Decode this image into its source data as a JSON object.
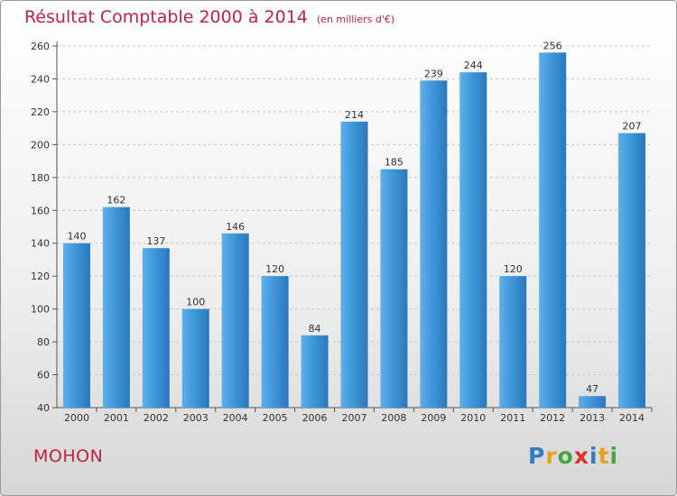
{
  "title": "Résultat Comptable 2000 à 2014",
  "unit": "(en milliers d'€)",
  "place": "MOHON",
  "logo": {
    "letters": [
      "P",
      "r",
      "o",
      "x",
      "i",
      "t",
      "i"
    ],
    "colors": [
      "#2f7fc1",
      "#e8a419",
      "#4aa53c",
      "#e0322b",
      "#2f7fc1",
      "#e8a419",
      "#4aa53c"
    ]
  },
  "colors": {
    "bar": "#3f96d8",
    "bar_light": "#5cb0ec",
    "bar_dark": "#2a78bd",
    "title": "#c0204a",
    "grid": "#c8c8c8"
  },
  "chart_data": {
    "type": "bar",
    "categories": [
      "2000",
      "2001",
      "2002",
      "2003",
      "2004",
      "2005",
      "2006",
      "2007",
      "2008",
      "2009",
      "2010",
      "2011",
      "2012",
      "2013",
      "2014"
    ],
    "values": [
      140,
      162,
      137,
      100,
      146,
      120,
      84,
      214,
      185,
      239,
      244,
      120,
      256,
      47,
      207
    ],
    "ylim": [
      40,
      260
    ],
    "yticks": [
      40,
      60,
      80,
      100,
      120,
      140,
      160,
      180,
      200,
      220,
      240,
      260
    ],
    "grid": true,
    "title": "Résultat Comptable 2000 à 2014",
    "xlabel": "",
    "ylabel": ""
  }
}
